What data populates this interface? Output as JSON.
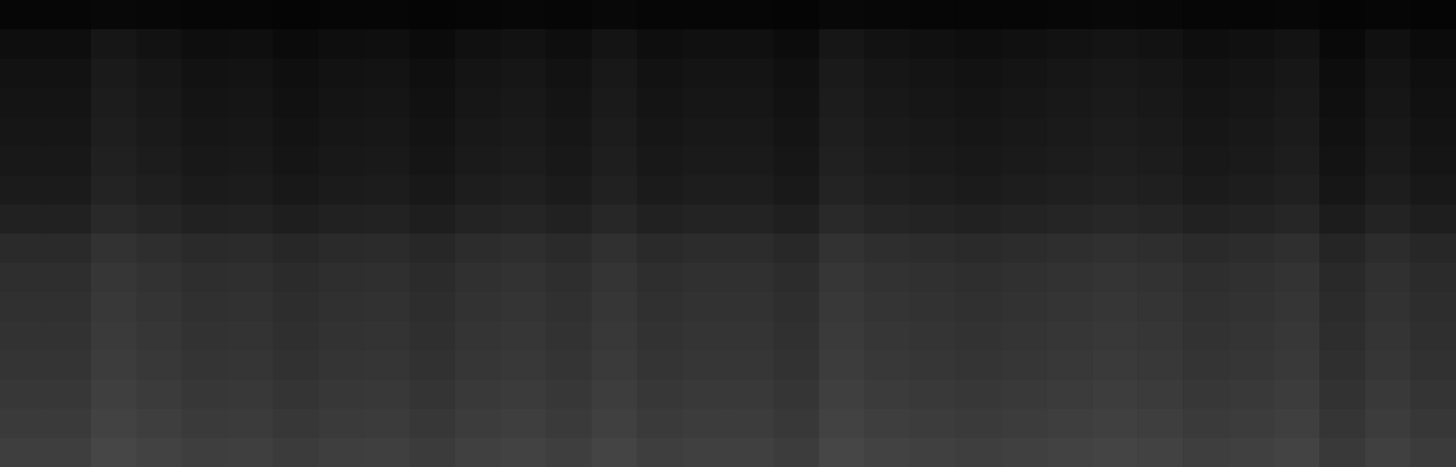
{
  "chart_data": {
    "type": "heatmap",
    "tick_labels": false,
    "color": "#ffffff",
    "color_range": [
      0,
      255
    ],
    "cells": [
      [
        6,
        6,
        8,
        7,
        6,
        6,
        5,
        6,
        6,
        5,
        6,
        7,
        6,
        8,
        6,
        6,
        6,
        5,
        8,
        7,
        6,
        6,
        6,
        7,
        8,
        7,
        6,
        6,
        7,
        5,
        6,
        5
      ],
      [
        14,
        14,
        22,
        18,
        14,
        15,
        11,
        14,
        15,
        11,
        16,
        18,
        14,
        20,
        14,
        16,
        16,
        12,
        22,
        18,
        16,
        14,
        16,
        18,
        20,
        18,
        14,
        16,
        19,
        9,
        16,
        11
      ],
      [
        18,
        18,
        26,
        22,
        18,
        19,
        15,
        18,
        19,
        15,
        20,
        22,
        18,
        24,
        18,
        20,
        20,
        16,
        26,
        22,
        20,
        18,
        20,
        22,
        24,
        22,
        18,
        20,
        23,
        13,
        20,
        15
      ],
      [
        20,
        20,
        28,
        24,
        20,
        21,
        17,
        20,
        21,
        17,
        22,
        24,
        20,
        26,
        20,
        22,
        22,
        18,
        28,
        24,
        22,
        20,
        22,
        24,
        26,
        24,
        20,
        22,
        25,
        15,
        22,
        17
      ],
      [
        22,
        22,
        30,
        26,
        22,
        23,
        19,
        22,
        23,
        19,
        24,
        26,
        22,
        28,
        22,
        24,
        24,
        20,
        30,
        26,
        24,
        22,
        24,
        26,
        28,
        26,
        22,
        24,
        27,
        17,
        24,
        19
      ],
      [
        24,
        24,
        32,
        28,
        24,
        25,
        21,
        24,
        25,
        21,
        26,
        28,
        24,
        30,
        24,
        26,
        26,
        22,
        32,
        28,
        26,
        24,
        26,
        28,
        30,
        28,
        24,
        26,
        29,
        19,
        26,
        21
      ],
      [
        27,
        27,
        35,
        31,
        27,
        28,
        24,
        27,
        28,
        24,
        29,
        31,
        27,
        33,
        27,
        29,
        29,
        25,
        35,
        31,
        29,
        27,
        29,
        31,
        33,
        31,
        27,
        29,
        32,
        22,
        29,
        24
      ],
      [
        33,
        33,
        41,
        37,
        33,
        34,
        30,
        33,
        34,
        30,
        35,
        37,
        33,
        39,
        33,
        35,
        35,
        31,
        41,
        37,
        35,
        33,
        35,
        37,
        39,
        37,
        33,
        35,
        38,
        28,
        35,
        30
      ],
      [
        42,
        42,
        50,
        46,
        42,
        43,
        39,
        42,
        43,
        39,
        44,
        46,
        42,
        48,
        42,
        44,
        44,
        40,
        50,
        46,
        44,
        42,
        44,
        46,
        48,
        46,
        42,
        44,
        47,
        37,
        44,
        39
      ],
      [
        46,
        46,
        54,
        50,
        46,
        47,
        43,
        46,
        47,
        43,
        48,
        50,
        46,
        52,
        46,
        48,
        48,
        44,
        54,
        50,
        48,
        46,
        48,
        50,
        52,
        50,
        46,
        48,
        51,
        41,
        48,
        43
      ],
      [
        48,
        48,
        56,
        52,
        48,
        49,
        45,
        48,
        49,
        45,
        50,
        52,
        48,
        54,
        48,
        50,
        50,
        46,
        56,
        52,
        50,
        48,
        50,
        52,
        54,
        52,
        48,
        50,
        53,
        43,
        50,
        45
      ],
      [
        50,
        50,
        58,
        54,
        50,
        51,
        47,
        50,
        51,
        47,
        52,
        54,
        50,
        56,
        50,
        52,
        52,
        48,
        58,
        54,
        52,
        50,
        52,
        54,
        56,
        54,
        50,
        52,
        55,
        45,
        52,
        47
      ],
      [
        52,
        52,
        60,
        56,
        52,
        53,
        49,
        52,
        53,
        49,
        54,
        56,
        52,
        58,
        52,
        54,
        54,
        50,
        60,
        56,
        54,
        52,
        54,
        56,
        58,
        56,
        52,
        54,
        57,
        47,
        54,
        49
      ],
      [
        55,
        55,
        63,
        59,
        55,
        56,
        52,
        55,
        56,
        52,
        57,
        59,
        55,
        61,
        55,
        57,
        57,
        53,
        63,
        59,
        57,
        55,
        57,
        59,
        61,
        59,
        55,
        57,
        60,
        50,
        57,
        52
      ],
      [
        58,
        58,
        66,
        62,
        58,
        59,
        55,
        58,
        59,
        55,
        60,
        62,
        58,
        64,
        58,
        60,
        60,
        56,
        66,
        62,
        60,
        58,
        60,
        62,
        64,
        62,
        58,
        60,
        63,
        53,
        60,
        55
      ],
      [
        62,
        62,
        70,
        66,
        62,
        63,
        59,
        62,
        63,
        59,
        64,
        66,
        62,
        68,
        62,
        64,
        64,
        60,
        70,
        66,
        64,
        62,
        64,
        66,
        68,
        66,
        62,
        64,
        67,
        57,
        64,
        59
      ]
    ]
  }
}
